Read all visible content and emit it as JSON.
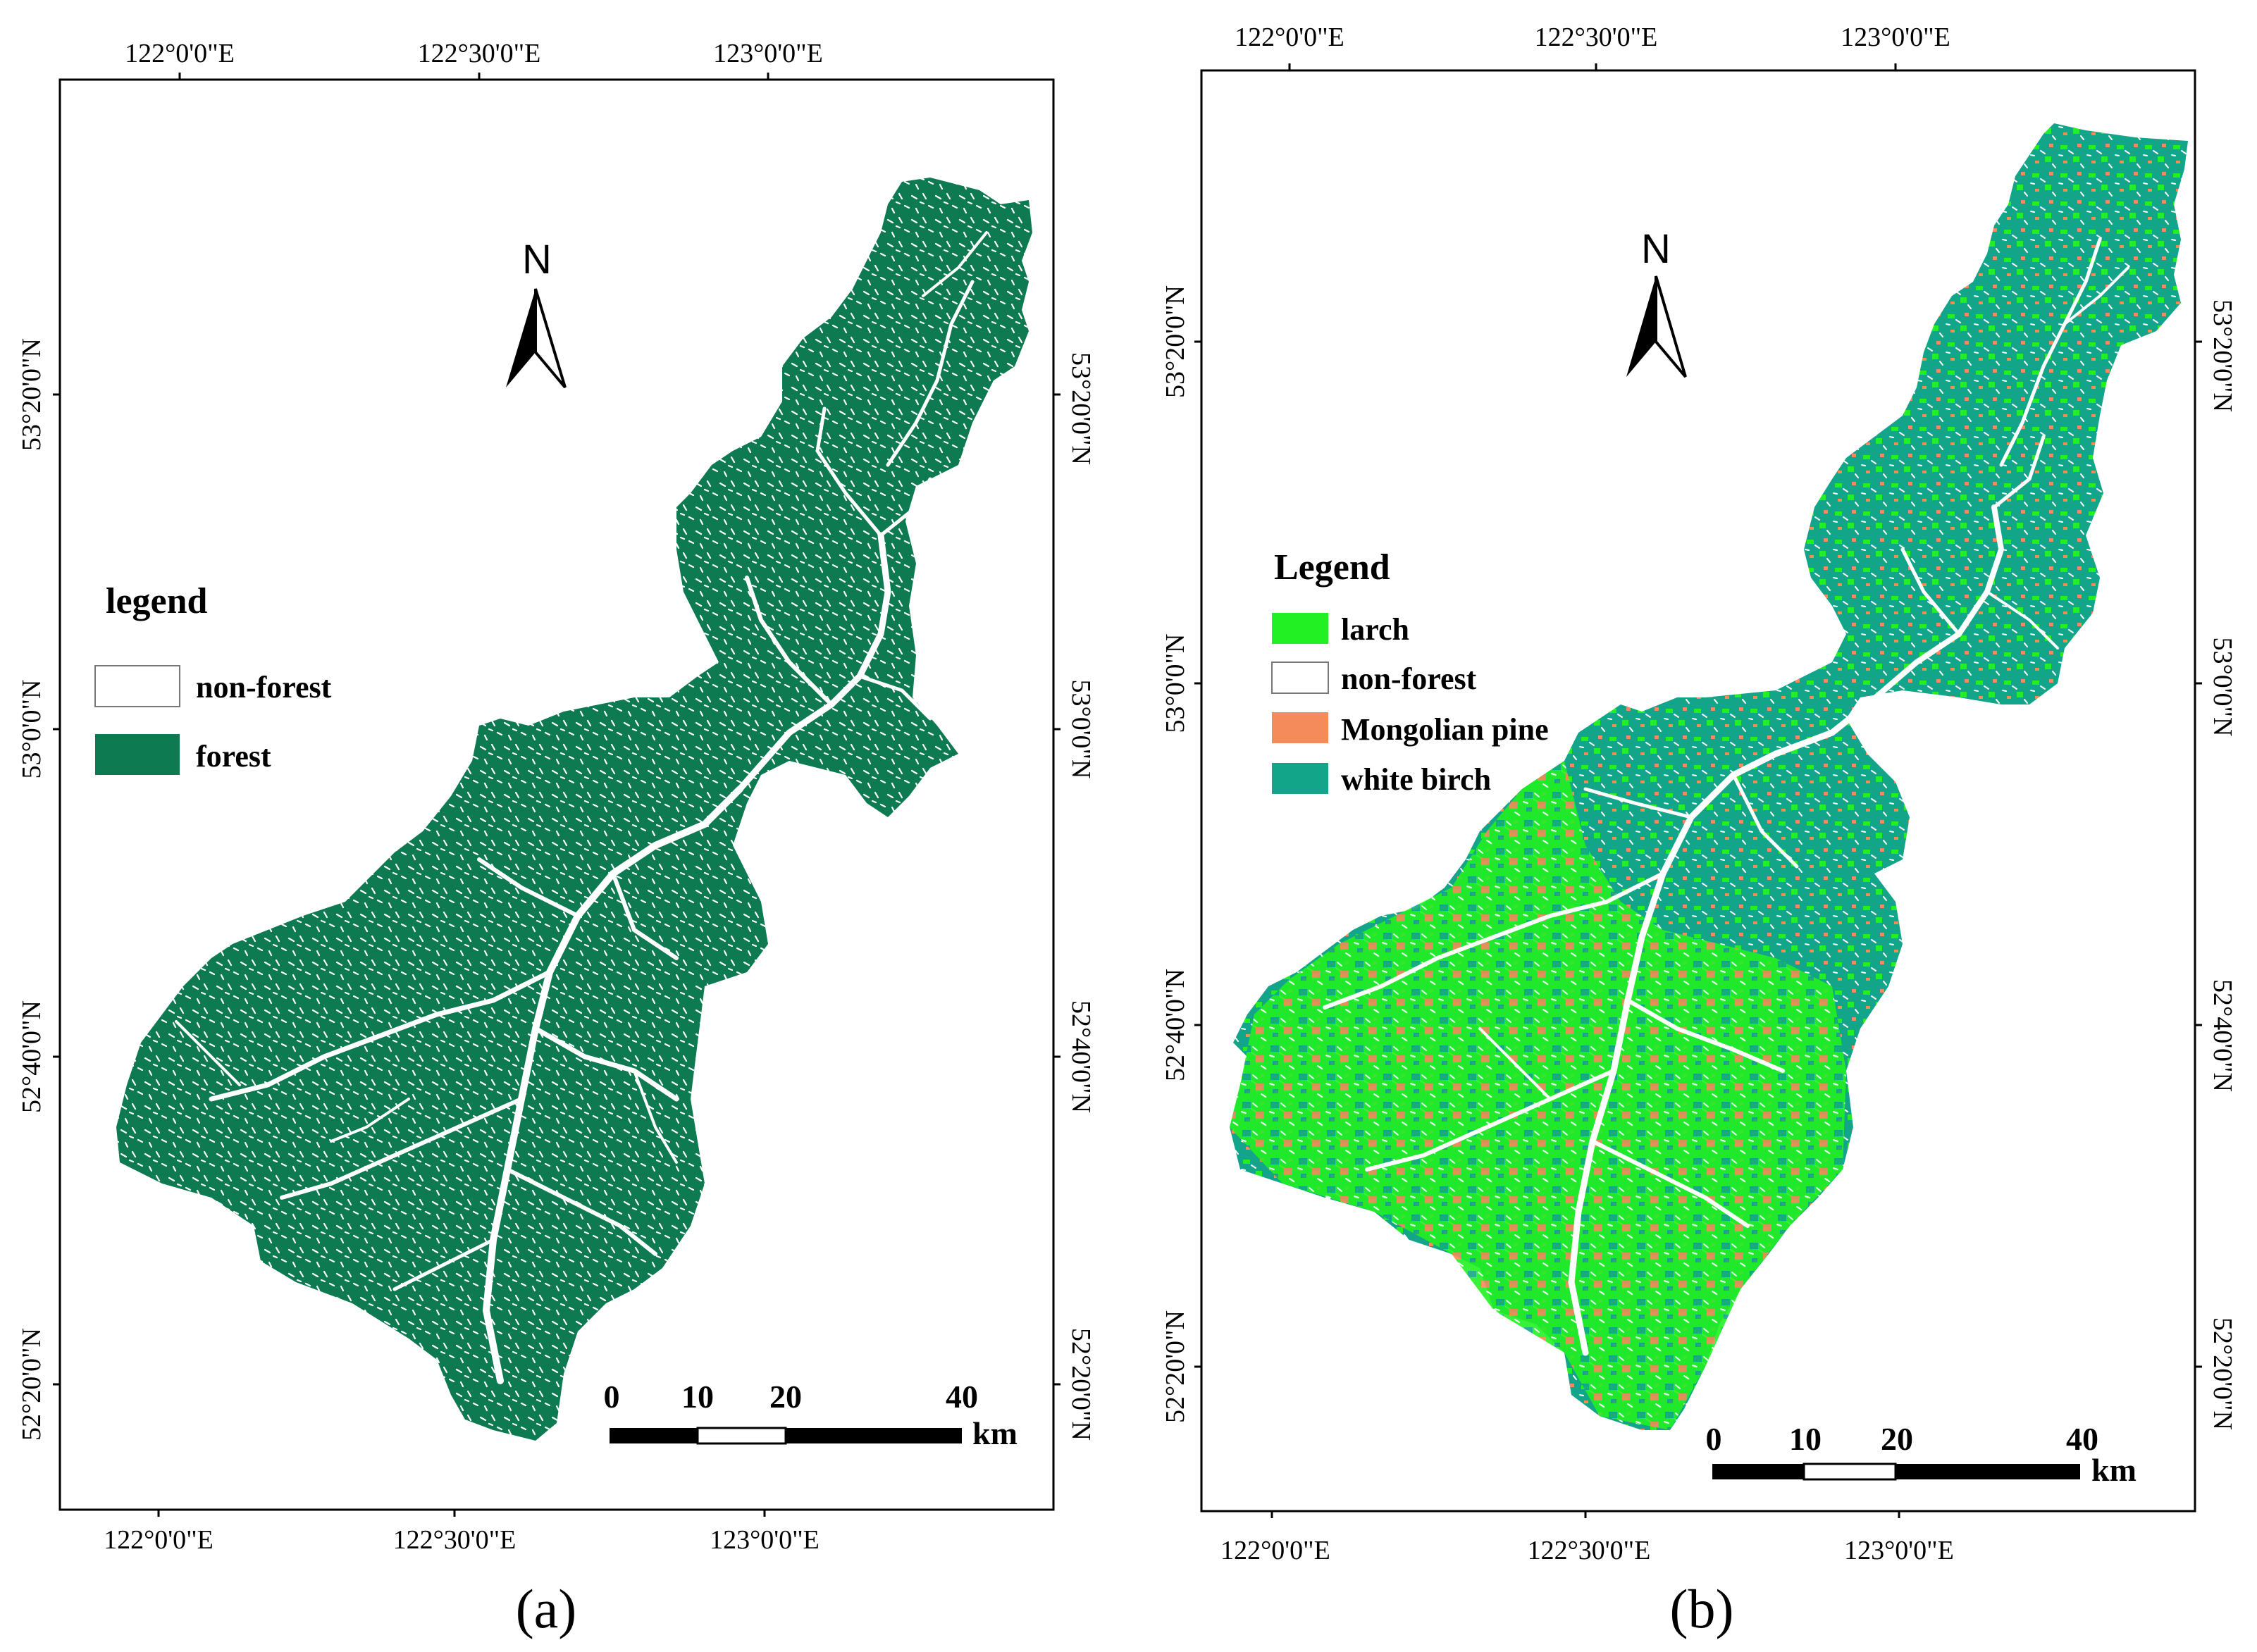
{
  "panel_a": {
    "top_ticks": [
      "122°0'0\"E",
      "122°30'0\"E",
      "123°0'0\"E"
    ],
    "bottom_ticks": [
      "122°0'0\"E",
      "122°30'0\"E",
      "123°0'0\"E"
    ],
    "left_ticks": [
      "53°20'0\"N",
      "53°0'0\"N",
      "52°40'0\"N",
      "52°20'0\"N"
    ],
    "right_ticks": [
      "53°20'0\"N",
      "53°0'0\"N",
      "52°40'0\"N",
      "52°20'0\"N"
    ],
    "north_label": "N",
    "legend": {
      "title": "legend",
      "items": [
        {
          "label": "non-forest",
          "color": "#ffffff"
        },
        {
          "label": "forest",
          "color": "#0e7a52"
        }
      ]
    },
    "scale": {
      "labels": [
        "0",
        "10",
        "20",
        "40"
      ],
      "unit": "km"
    },
    "caption": "(a)"
  },
  "panel_b": {
    "top_ticks": [
      "122°0'0\"E",
      "122°30'0\"E",
      "123°0'0\"E"
    ],
    "bottom_ticks": [
      "122°0'0\"E",
      "122°30'0\"E",
      "123°0'0\"E"
    ],
    "left_ticks": [
      "53°20'0\"N",
      "53°0'0\"N",
      "52°40'0\"N",
      "52°20'0\"N"
    ],
    "right_ticks": [
      "53°20'0\"N",
      "53°0'0\"N",
      "52°40'0\"N",
      "52°20'0\"N"
    ],
    "north_label": "N",
    "legend": {
      "title": "Legend",
      "items": [
        {
          "label": "larch",
          "color": "#22f022"
        },
        {
          "label": "non-forest",
          "color": "#ffffff"
        },
        {
          "label": "Mongolian pine",
          "color": "#f58a5a"
        },
        {
          "label": "white birch",
          "color": "#13a589"
        }
      ]
    },
    "scale": {
      "labels": [
        "0",
        "10",
        "20",
        "40"
      ],
      "unit": "km"
    },
    "caption": "(b)"
  }
}
